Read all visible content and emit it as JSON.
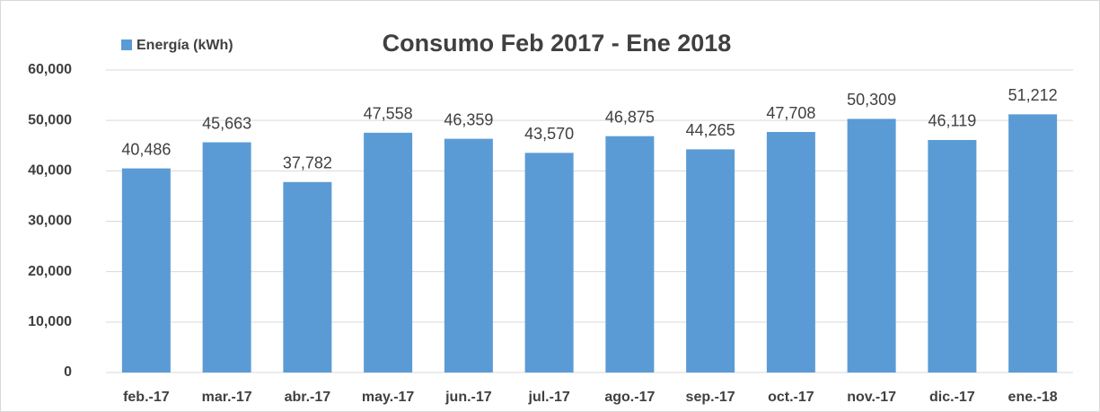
{
  "chart_data": {
    "type": "bar",
    "title": "Consumo Feb 2017 - Ene 2018",
    "categories": [
      "feb.-17",
      "mar.-17",
      "abr.-17",
      "may.-17",
      "jun.-17",
      "jul.-17",
      "ago.-17",
      "sep.-17",
      "oct.-17",
      "nov.-17",
      "dic.-17",
      "ene.-18"
    ],
    "series": [
      {
        "name": "Energía (kWh)",
        "color": "#5b9bd5",
        "values": [
          40486,
          45663,
          37782,
          47558,
          46359,
          43570,
          46875,
          44265,
          47708,
          50309,
          46119,
          51212
        ],
        "value_labels": [
          "40,486",
          "45,663",
          "37,782",
          "47,558",
          "46,359",
          "43,570",
          "46,875",
          "44,265",
          "47,708",
          "50,309",
          "46,119",
          "51,212"
        ]
      }
    ],
    "ylim": [
      0,
      60000
    ],
    "yticks": [
      0,
      {
        "value": 10000,
        "label": "10,000"
      },
      {
        "value": 20000,
        "label": "20,000"
      },
      {
        "value": 30000,
        "label": "30,000"
      },
      {
        "value": 40000,
        "label": "40,000"
      },
      {
        "value": 50000,
        "label": "50,000"
      },
      {
        "value": 60000,
        "label": "60,000"
      }
    ],
    "grid": true,
    "legend": "top-left"
  }
}
